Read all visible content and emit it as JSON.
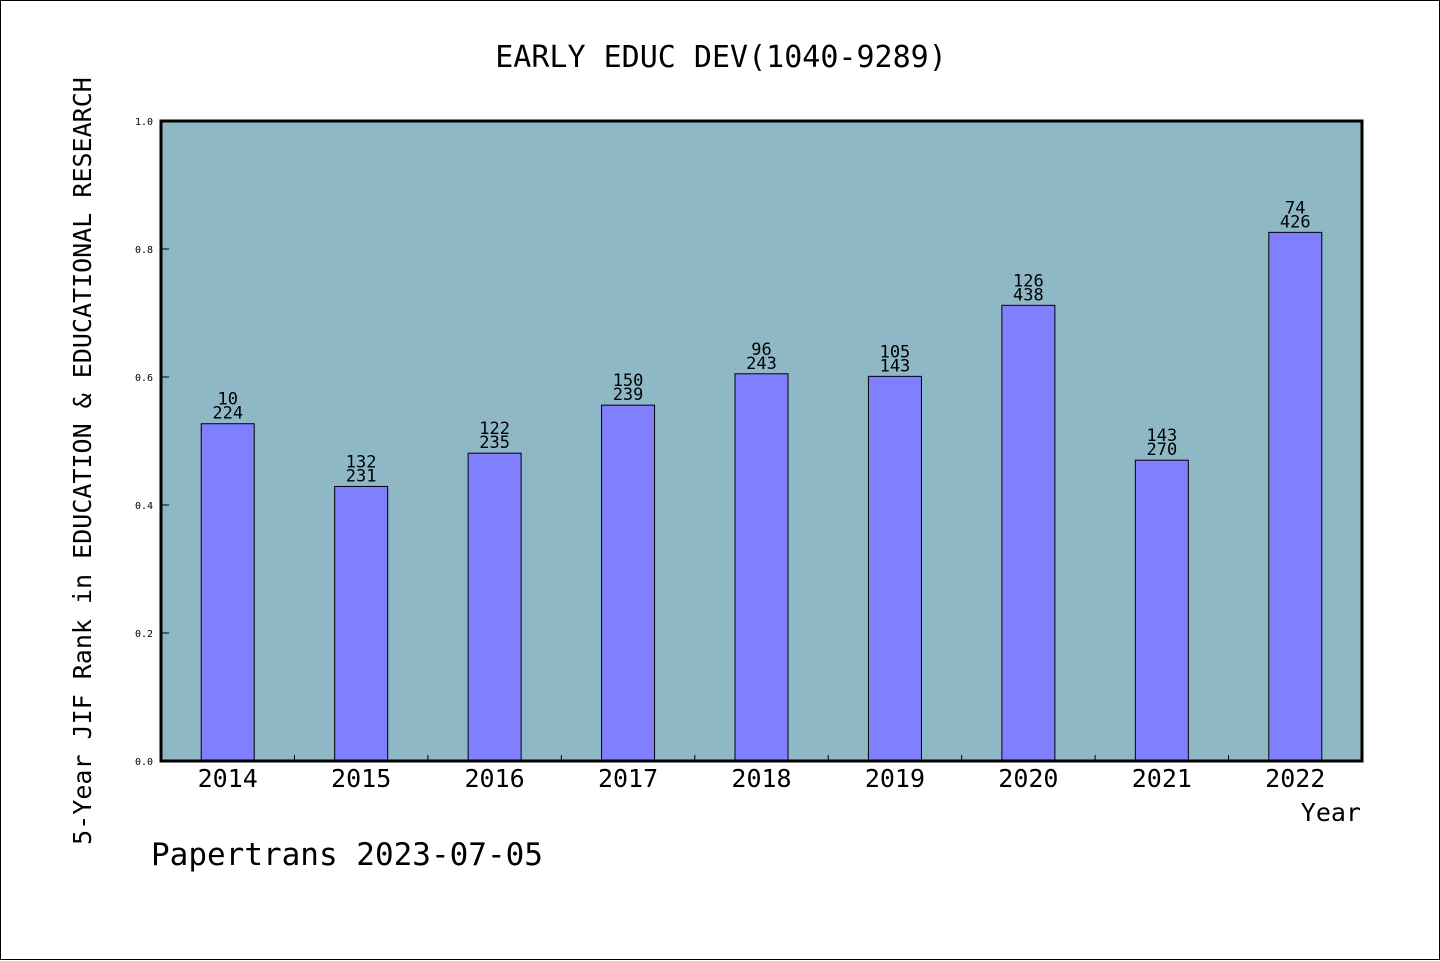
{
  "chart_data": {
    "type": "bar",
    "title": "EARLY EDUC DEV(1040-9289)",
    "xlabel": "Year",
    "ylabel": "5-Year JIF Rank in EDUCATION & EDUCATIONAL RESEARCH",
    "ylim": [
      0,
      1.0
    ],
    "yticks": [
      "0.0",
      "0.2",
      "0.4",
      "0.6",
      "0.8",
      "1.0"
    ],
    "categories": [
      "2014",
      "2015",
      "2016",
      "2017",
      "2018",
      "2019",
      "2020",
      "2021",
      "2022"
    ],
    "values": [
      0.527,
      0.429,
      0.481,
      0.556,
      0.605,
      0.601,
      0.712,
      0.47,
      0.826
    ],
    "rank_labels": [
      "10",
      "132",
      "122",
      "150",
      "96",
      "105",
      "126",
      "143",
      "74"
    ],
    "total_labels": [
      "224",
      "231",
      "235",
      "239",
      "243",
      "143",
      "438",
      "270",
      "426"
    ],
    "grid": false,
    "colors": {
      "plot_background": "#8fb8c6",
      "bar_fill": "#8080ff",
      "bar_stroke": "#000000"
    }
  },
  "footer": {
    "credit": "Papertrans 2023-07-05"
  }
}
